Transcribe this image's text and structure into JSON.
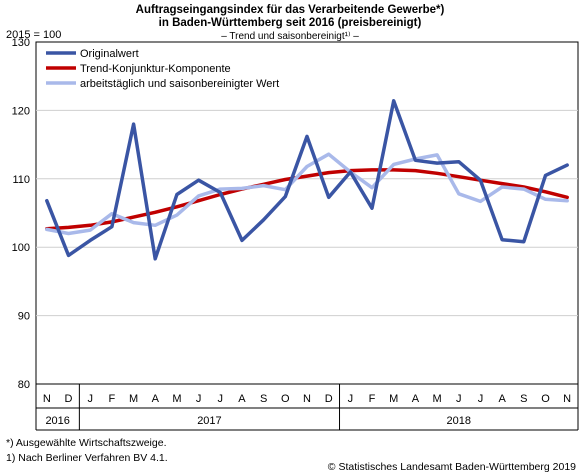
{
  "chart_data": {
    "type": "line",
    "title_line1": "Auftragseingangsindex für das Verarbeitende Gewerbe*)",
    "title_line2": "in Baden-Württemberg seit 2016 (preisbereinigt)",
    "subtitle": "– Trend und saisonbereinigt¹⁾ –",
    "ylabel": "2015 = 100",
    "ylim": [
      80,
      130
    ],
    "yticks": [
      80,
      90,
      100,
      110,
      120,
      130
    ],
    "grid": true,
    "legend_position": "top-left",
    "months": [
      "N",
      "D",
      "J",
      "F",
      "M",
      "A",
      "M",
      "J",
      "J",
      "A",
      "S",
      "O",
      "N",
      "D",
      "J",
      "F",
      "M",
      "A",
      "M",
      "J",
      "J",
      "A",
      "S",
      "O",
      "N"
    ],
    "years": [
      {
        "label": "2016",
        "start": 0,
        "count": 2
      },
      {
        "label": "2017",
        "start": 2,
        "count": 12
      },
      {
        "label": "2018",
        "start": 14,
        "count": 11
      }
    ],
    "series": [
      {
        "name": "Originalwert",
        "color": "#3a55a4",
        "width": 3.5,
        "values": [
          106.8,
          98.8,
          101.0,
          103.0,
          118.0,
          98.3,
          107.7,
          109.8,
          108.0,
          101.0,
          104.0,
          107.4,
          116.2,
          107.3,
          111.0,
          105.7,
          121.4,
          112.7,
          112.3,
          112.5,
          109.8,
          101.1,
          100.8,
          110.5,
          112.0
        ]
      },
      {
        "name": "Trend-Konjunktur-Komponente",
        "color": "#c00000",
        "width": 3.5,
        "values": [
          102.7,
          102.9,
          103.2,
          103.7,
          104.4,
          105.1,
          105.9,
          106.8,
          107.7,
          108.5,
          109.2,
          109.9,
          110.4,
          110.9,
          111.2,
          111.3,
          111.3,
          111.2,
          110.8,
          110.3,
          109.8,
          109.3,
          108.8,
          108.1,
          107.3
        ]
      },
      {
        "name": "arbeitstäglich und saisonbereinigter Wert",
        "color": "#a9b9ea",
        "width": 3.5,
        "values": [
          102.6,
          102.0,
          102.5,
          104.9,
          103.6,
          103.2,
          104.7,
          107.5,
          108.5,
          108.6,
          109.0,
          108.4,
          111.8,
          113.6,
          111.0,
          108.7,
          112.1,
          112.9,
          113.5,
          107.8,
          106.7,
          108.8,
          108.5,
          107.0,
          106.8
        ]
      }
    ]
  },
  "footnotes": [
    "*) Ausgewählte Wirtschaftszweige.",
    "1) Nach Berliner Verfahren BV 4.1."
  ],
  "source": "© Statistisches Landesamt Baden-Württemberg 2019"
}
